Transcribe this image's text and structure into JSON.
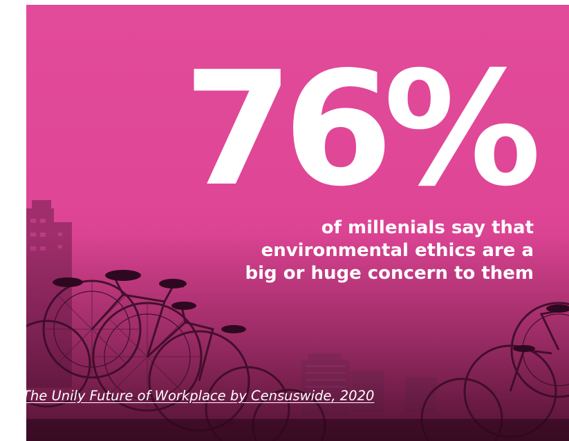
{
  "infographic": {
    "statistic": "76%",
    "caption": "of millenials say that environmental ethics are a big or huge concern to them",
    "source": "The Unily Future of Workplace by Censuswide, 2020"
  },
  "theme": {
    "background": "#df4696",
    "overlay_dark": "#3a0a24",
    "text": "#ffffff"
  },
  "illustration": {
    "subject": "bicycle-rack-photo",
    "description_icon": "bicycles-icon"
  }
}
